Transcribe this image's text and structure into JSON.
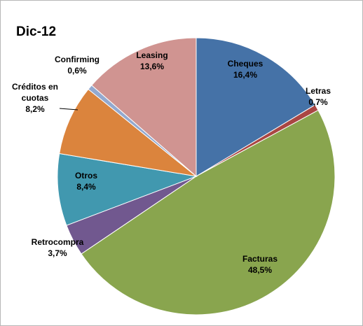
{
  "chart_data": {
    "type": "pie",
    "title": "Dic-12",
    "slices": [
      {
        "label": "Cheques",
        "value_label": "16,4%",
        "value": 16.4,
        "color": "#4572A7"
      },
      {
        "label": "Letras",
        "value_label": "0,7%",
        "value": 0.7,
        "color": "#AA4643"
      },
      {
        "label": "Facturas",
        "value_label": "48,5%",
        "value": 48.5,
        "color": "#89A54E"
      },
      {
        "label": "Retrocompra",
        "value_label": "3,7%",
        "value": 3.7,
        "color": "#71588F"
      },
      {
        "label": "Otros",
        "value_label": "8,4%",
        "value": 8.4,
        "color": "#4198AF"
      },
      {
        "label": "Créditos en cuotas",
        "value_label": "8,2%",
        "value": 8.2,
        "color": "#DB843D"
      },
      {
        "label": "Confirming",
        "value_label": "0,6%",
        "value": 0.6,
        "color": "#93A9CF"
      },
      {
        "label": "Leasing",
        "value_label": "13,6%",
        "value": 13.6,
        "color": "#D09491"
      }
    ]
  }
}
